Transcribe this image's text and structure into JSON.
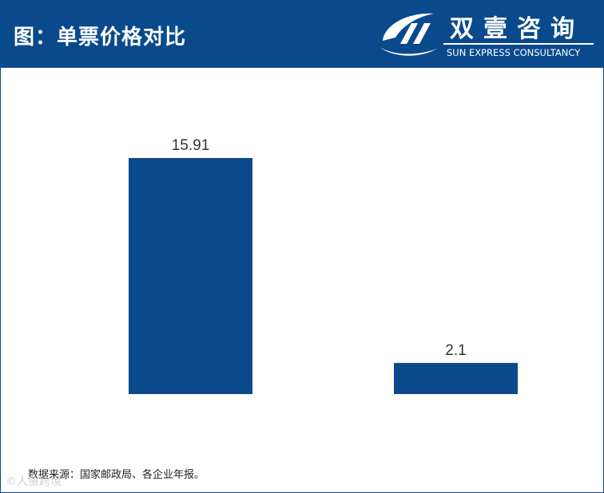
{
  "header": {
    "title": "图：单票价格对比",
    "bg_color": "#0a4a8c"
  },
  "logo": {
    "icon": "swoosh-logo-icon",
    "name_cn": "双壹咨询",
    "name_en": "SUN EXPRESS CONSULTANCY"
  },
  "chart_data": {
    "type": "bar",
    "title": "图：单票价格对比",
    "categories": [
      "",
      ""
    ],
    "values": [
      15.91,
      2.1
    ],
    "data_labels": [
      "15.91",
      "2.1"
    ],
    "bar_color": "#0a4a8c",
    "xlabel": "",
    "ylabel": "",
    "ylim": [
      0,
      17
    ],
    "grid": false,
    "legend": "none"
  },
  "footer": {
    "source": "数据来源：国家邮政局、各企业年报。"
  },
  "watermark": {
    "text": "©人鱼跨境"
  }
}
